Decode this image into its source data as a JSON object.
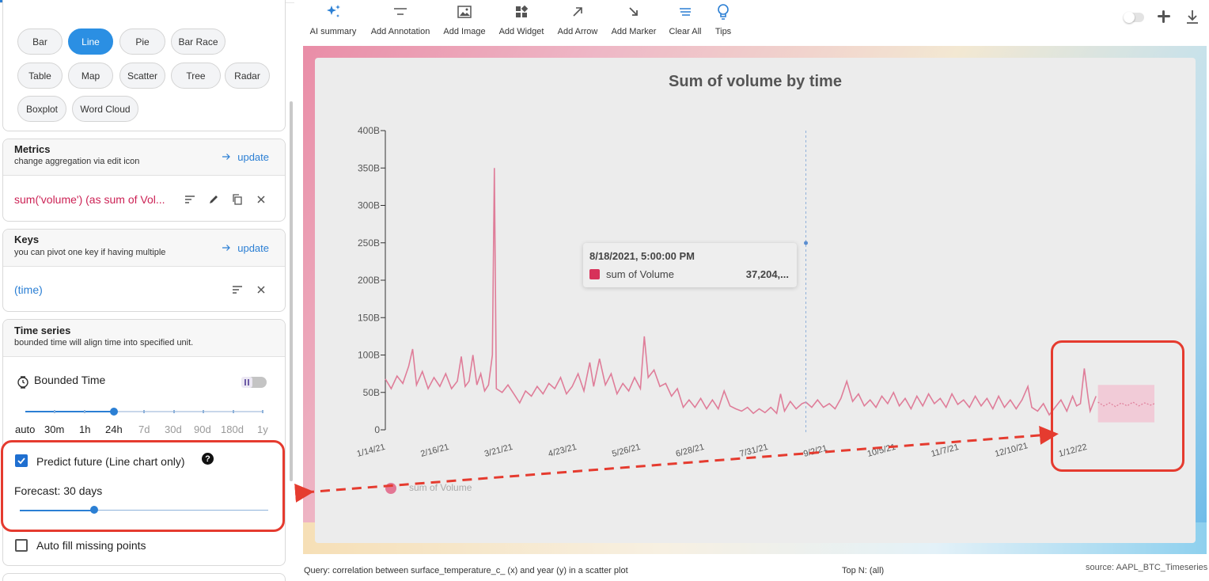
{
  "chart_types": {
    "active": "Line",
    "items": [
      "Bar",
      "Line",
      "Pie",
      "Bar Race",
      "Table",
      "Map",
      "Scatter",
      "Tree",
      "Radar",
      "Boxplot",
      "Word Cloud"
    ]
  },
  "metrics": {
    "title": "Metrics",
    "subtitle": "change aggregation via edit icon",
    "update_label": "update",
    "item": "sum('volume') (as sum of Vol..."
  },
  "keys": {
    "title": "Keys",
    "subtitle": "you can pivot one key if having multiple",
    "update_label": "update",
    "item": "(time)"
  },
  "time_series": {
    "title": "Time series",
    "subtitle": "bounded time will align time into specified unit.",
    "bounded_label": "Bounded Time",
    "bounded_enabled": false,
    "units": [
      "auto",
      "30m",
      "1h",
      "24h",
      "7d",
      "30d",
      "90d",
      "180d",
      "1y"
    ],
    "selected_unit": "24h",
    "predict_label": "Predict future (Line chart only)",
    "predict_checked": true,
    "forecast_label": "Forecast: 30 days",
    "forecast_fraction": 0.3,
    "autofill_label": "Auto fill missing points",
    "autofill_checked": false
  },
  "toolbar": {
    "ai_summary": "AI summary",
    "add_annotation": "Add Annotation",
    "add_image": "Add Image",
    "add_widget": "Add Widget",
    "add_arrow": "Add Arrow",
    "add_marker": "Add Marker",
    "clear_all": "Clear All",
    "tips": "Tips"
  },
  "colors": {
    "accent": "#2b7fd4",
    "series": "#d7325a",
    "highlight": "#e53b2f",
    "forecast_band": "#f2c6d3"
  },
  "chart_data": {
    "type": "line",
    "title": "Sum of volume by time",
    "ylim": [
      0,
      400
    ],
    "y_unit_suffix": "B",
    "y_ticks": [
      0,
      50,
      100,
      150,
      200,
      250,
      300,
      350,
      400
    ],
    "y_tick_labels": [
      "0",
      "50B",
      "100B",
      "150B",
      "200B",
      "250B",
      "300B",
      "350B",
      "400B"
    ],
    "x_tick_labels": [
      "1/14/21",
      "2/16/21",
      "3/21/21",
      "4/23/21",
      "5/26/21",
      "6/28/21",
      "7/31/21",
      "9/2/21",
      "10/5/21",
      "11/7/21",
      "12/10/21",
      "1/12/22"
    ],
    "x_range": [
      "2021-01-14",
      "2022-02-13"
    ],
    "grid": false,
    "legend_position": "bottom-left",
    "series": [
      {
        "name": "sum of Volume",
        "points": [
          [
            "2021-01-14",
            68
          ],
          [
            "2021-01-17",
            55
          ],
          [
            "2021-01-20",
            72
          ],
          [
            "2021-01-23",
            62
          ],
          [
            "2021-01-26",
            85
          ],
          [
            "2021-01-28",
            108
          ],
          [
            "2021-01-30",
            60
          ],
          [
            "2021-02-02",
            78
          ],
          [
            "2021-02-05",
            55
          ],
          [
            "2021-02-08",
            70
          ],
          [
            "2021-02-11",
            58
          ],
          [
            "2021-02-14",
            75
          ],
          [
            "2021-02-17",
            55
          ],
          [
            "2021-02-20",
            65
          ],
          [
            "2021-02-22",
            98
          ],
          [
            "2021-02-24",
            58
          ],
          [
            "2021-02-26",
            65
          ],
          [
            "2021-02-28",
            100
          ],
          [
            "2021-03-02",
            60
          ],
          [
            "2021-03-04",
            75
          ],
          [
            "2021-03-06",
            52
          ],
          [
            "2021-03-08",
            60
          ],
          [
            "2021-03-10",
            100
          ],
          [
            "2021-03-11",
            350
          ],
          [
            "2021-03-12",
            55
          ],
          [
            "2021-03-15",
            50
          ],
          [
            "2021-03-18",
            60
          ],
          [
            "2021-03-21",
            48
          ],
          [
            "2021-03-24",
            36
          ],
          [
            "2021-03-27",
            52
          ],
          [
            "2021-03-30",
            45
          ],
          [
            "2021-04-02",
            58
          ],
          [
            "2021-04-05",
            48
          ],
          [
            "2021-04-08",
            62
          ],
          [
            "2021-04-11",
            55
          ],
          [
            "2021-04-14",
            70
          ],
          [
            "2021-04-17",
            48
          ],
          [
            "2021-04-20",
            58
          ],
          [
            "2021-04-23",
            75
          ],
          [
            "2021-04-26",
            52
          ],
          [
            "2021-04-29",
            90
          ],
          [
            "2021-05-01",
            58
          ],
          [
            "2021-05-04",
            95
          ],
          [
            "2021-05-07",
            60
          ],
          [
            "2021-05-10",
            75
          ],
          [
            "2021-05-13",
            48
          ],
          [
            "2021-05-16",
            62
          ],
          [
            "2021-05-19",
            52
          ],
          [
            "2021-05-22",
            70
          ],
          [
            "2021-05-25",
            55
          ],
          [
            "2021-05-27",
            125
          ],
          [
            "2021-05-29",
            70
          ],
          [
            "2021-06-01",
            80
          ],
          [
            "2021-06-04",
            58
          ],
          [
            "2021-06-07",
            62
          ],
          [
            "2021-06-10",
            45
          ],
          [
            "2021-06-13",
            55
          ],
          [
            "2021-06-16",
            30
          ],
          [
            "2021-06-19",
            40
          ],
          [
            "2021-06-22",
            30
          ],
          [
            "2021-06-25",
            42
          ],
          [
            "2021-06-28",
            28
          ],
          [
            "2021-07-01",
            40
          ],
          [
            "2021-07-04",
            28
          ],
          [
            "2021-07-07",
            52
          ],
          [
            "2021-07-10",
            32
          ],
          [
            "2021-07-13",
            28
          ],
          [
            "2021-07-16",
            25
          ],
          [
            "2021-07-19",
            30
          ],
          [
            "2021-07-22",
            22
          ],
          [
            "2021-07-25",
            28
          ],
          [
            "2021-07-28",
            23
          ],
          [
            "2021-07-31",
            30
          ],
          [
            "2021-08-03",
            22
          ],
          [
            "2021-08-05",
            48
          ],
          [
            "2021-08-07",
            25
          ],
          [
            "2021-08-10",
            38
          ],
          [
            "2021-08-13",
            28
          ],
          [
            "2021-08-16",
            35
          ],
          [
            "2021-08-18",
            37
          ],
          [
            "2021-08-21",
            30
          ],
          [
            "2021-08-24",
            40
          ],
          [
            "2021-08-27",
            30
          ],
          [
            "2021-08-30",
            35
          ],
          [
            "2021-09-02",
            28
          ],
          [
            "2021-09-05",
            42
          ],
          [
            "2021-09-08",
            65
          ],
          [
            "2021-09-11",
            38
          ],
          [
            "2021-09-14",
            48
          ],
          [
            "2021-09-17",
            32
          ],
          [
            "2021-09-20",
            40
          ],
          [
            "2021-09-23",
            30
          ],
          [
            "2021-09-26",
            45
          ],
          [
            "2021-09-29",
            35
          ],
          [
            "2021-10-02",
            50
          ],
          [
            "2021-10-05",
            32
          ],
          [
            "2021-10-08",
            42
          ],
          [
            "2021-10-11",
            28
          ],
          [
            "2021-10-14",
            45
          ],
          [
            "2021-10-17",
            32
          ],
          [
            "2021-10-20",
            48
          ],
          [
            "2021-10-23",
            35
          ],
          [
            "2021-10-26",
            42
          ],
          [
            "2021-10-29",
            30
          ],
          [
            "2021-11-01",
            48
          ],
          [
            "2021-11-04",
            34
          ],
          [
            "2021-11-07",
            40
          ],
          [
            "2021-11-10",
            30
          ],
          [
            "2021-11-13",
            45
          ],
          [
            "2021-11-16",
            32
          ],
          [
            "2021-11-19",
            42
          ],
          [
            "2021-11-22",
            28
          ],
          [
            "2021-11-25",
            45
          ],
          [
            "2021-11-28",
            30
          ],
          [
            "2021-12-01",
            40
          ],
          [
            "2021-12-04",
            28
          ],
          [
            "2021-12-07",
            40
          ],
          [
            "2021-12-10",
            58
          ],
          [
            "2021-12-12",
            30
          ],
          [
            "2021-12-15",
            25
          ],
          [
            "2021-12-18",
            35
          ],
          [
            "2021-12-21",
            20
          ],
          [
            "2021-12-24",
            30
          ],
          [
            "2021-12-27",
            40
          ],
          [
            "2021-12-30",
            25
          ],
          [
            "2022-01-02",
            45
          ],
          [
            "2022-01-04",
            32
          ],
          [
            "2022-01-06",
            35
          ],
          [
            "2022-01-08",
            82
          ],
          [
            "2022-01-10",
            42
          ],
          [
            "2022-01-11",
            25
          ],
          [
            "2022-01-14",
            45
          ]
        ]
      },
      {
        "name": "forecast",
        "points": [
          [
            "2022-01-15",
            37
          ],
          [
            "2022-01-18",
            32
          ],
          [
            "2022-01-21",
            36
          ],
          [
            "2022-01-24",
            31
          ],
          [
            "2022-01-27",
            36
          ],
          [
            "2022-01-30",
            32
          ],
          [
            "2022-02-02",
            37
          ],
          [
            "2022-02-05",
            32
          ],
          [
            "2022-02-08",
            36
          ],
          [
            "2022-02-11",
            33
          ],
          [
            "2022-02-13",
            35
          ]
        ],
        "lower": 10,
        "upper": 60
      }
    ],
    "crosshair_date": "2021-08-18",
    "tooltip": {
      "title": "8/18/2021, 5:00:00 PM",
      "series": "sum of Volume",
      "value": "37,204,..."
    },
    "legend": [
      "sum of Volume"
    ]
  },
  "footer": {
    "query": "Query: correlation between surface_temperature_c_ (x) and year (y) in a scatter plot",
    "topn": "Top N: (all)",
    "source": "source: AAPL_BTC_Timeseries"
  }
}
